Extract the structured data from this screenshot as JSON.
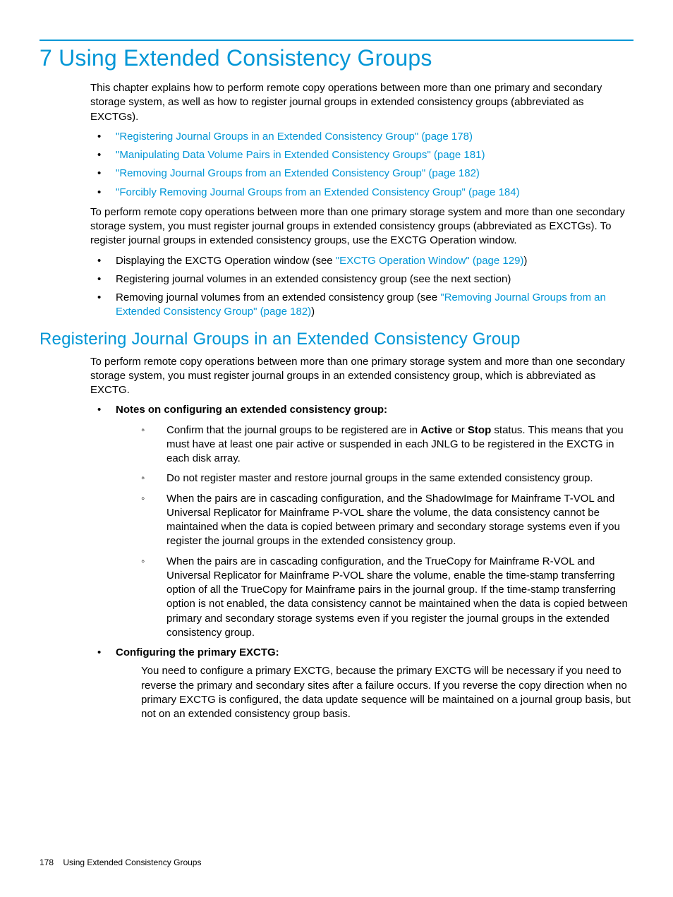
{
  "colors": {
    "accent": "#0096d6",
    "text": "#000000",
    "background": "#ffffff"
  },
  "chapter": {
    "title": "7 Using Extended Consistency Groups"
  },
  "intro": {
    "p1": "This chapter explains how to perform remote copy operations between more than one primary and secondary storage system, as well as how to register journal groups in extended consistency groups (abbreviated as EXCTGs)."
  },
  "toc_links": {
    "l1": "\"Registering Journal Groups in an Extended Consistency Group\" (page 178)",
    "l2": "\"Manipulating Data Volume Pairs in Extended Consistency Groups\" (page 181)",
    "l3": "\"Removing Journal Groups from an Extended Consistency Group\" (page 182)",
    "l4": "\"Forcibly Removing Journal Groups from an Extended Consistency Group\" (page 184)"
  },
  "intro2": {
    "p1": "To perform remote copy operations between more than one primary storage system and more than one secondary storage system, you must register journal groups in extended consistency groups (abbreviated as EXCTGs). To register journal groups in extended consistency groups, use the EXCTG Operation window."
  },
  "ops_list": {
    "i1_pre": "Displaying the EXCTG Operation window (see ",
    "i1_link": "\"EXCTG Operation Window\" (page 129)",
    "i1_post": ")",
    "i2": "Registering journal volumes in an extended consistency group (see the next section)",
    "i3_pre": "Removing journal volumes from an extended consistency group (see ",
    "i3_link": "\"Removing Journal Groups from an Extended Consistency Group\" (page 182)",
    "i3_post": ")"
  },
  "section": {
    "title": "Registering Journal Groups in an Extended Consistency Group",
    "p1": "To perform remote copy operations between more than one primary storage system and more than one secondary storage system, you must register journal groups in an extended consistency group, which is abbreviated as EXCTG."
  },
  "notes": {
    "heading": "Notes on configuring an extended consistency group:",
    "n1_pre": "Confirm that the journal groups to be registered are in ",
    "n1_b1": "Active",
    "n1_mid": " or ",
    "n1_b2": "Stop",
    "n1_post": " status. This means that you must have at least one pair active or suspended in each JNLG to be registered in the EXCTG in each disk array.",
    "n2": "Do not register master and restore journal groups in the same extended consistency group.",
    "n3": "When the pairs are in cascading configuration, and the ShadowImage for Mainframe T-VOL and Universal Replicator for Mainframe P-VOL share the volume, the data consistency cannot be maintained when the data is copied between primary and secondary storage systems even if you register the journal groups in the extended consistency group.",
    "n4": "When the pairs are in cascading configuration, and the TrueCopy for Mainframe R-VOL and Universal Replicator for Mainframe P-VOL share the volume, enable the time-stamp transferring option of all the TrueCopy for Mainframe pairs in the journal group. If the time-stamp transferring option is not enabled, the data consistency cannot be maintained when the data is copied between primary and secondary storage systems even if you register the journal groups in the extended consistency group."
  },
  "config": {
    "heading": "Configuring the primary EXCTG:",
    "p1": "You need to configure a primary EXCTG, because the primary EXCTG will be necessary if you need to reverse the primary and secondary sites after a failure occurs. If you reverse the copy direction when no primary EXCTG is configured, the data update sequence will be maintained on a journal group basis, but not on an extended consistency group basis."
  },
  "footer": {
    "page_number": "178",
    "running": "Using Extended Consistency Groups"
  }
}
